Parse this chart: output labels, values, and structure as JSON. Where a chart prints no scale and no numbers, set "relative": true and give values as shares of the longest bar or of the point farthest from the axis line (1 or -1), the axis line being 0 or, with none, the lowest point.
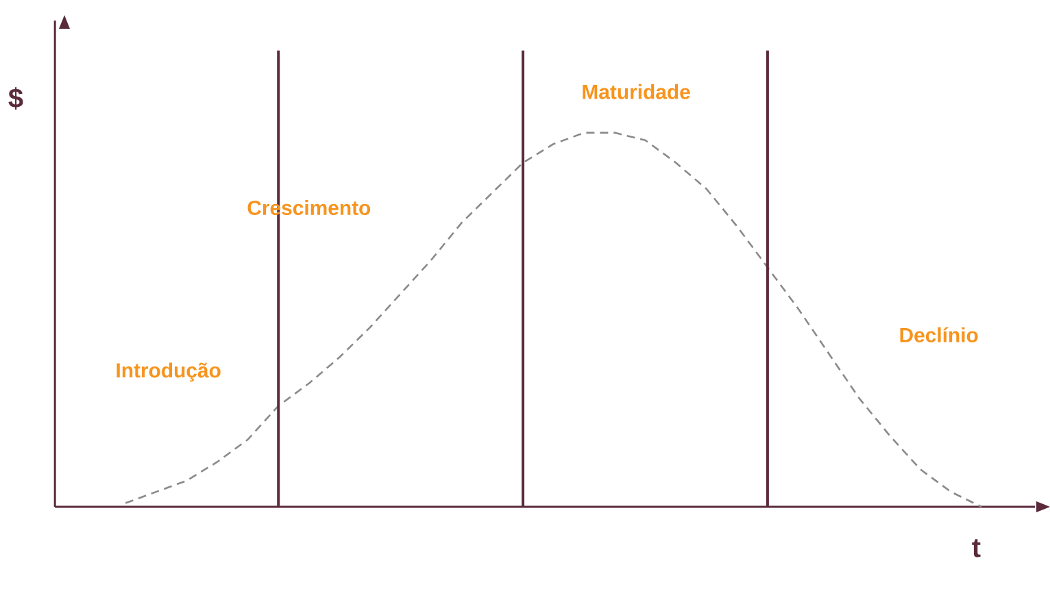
{
  "chart_data": {
    "type": "line",
    "relative": true,
    "xlabel": "t",
    "ylabel": "$",
    "grid": "x",
    "line_style": "dashed",
    "marker": "none",
    "categories": [
      null,
      null,
      null,
      null,
      null,
      null,
      null,
      null,
      null,
      null,
      null,
      null,
      null,
      null,
      null,
      null,
      null,
      null,
      null,
      null,
      null,
      null,
      null,
      null,
      null,
      null,
      null,
      null,
      null,
      null,
      null,
      null
    ],
    "series": [
      {
        "color": "#8a8a8a",
        "values": [
          null,
          null,
          0.01,
          0.04,
          0.07,
          0.12,
          0.18,
          0.27,
          0.33,
          0.4,
          0.48,
          0.57,
          0.66,
          0.76,
          0.84,
          0.92,
          0.97,
          1.0,
          1.0,
          0.98,
          0.92,
          0.85,
          0.75,
          0.64,
          0.53,
          0.41,
          0.29,
          0.19,
          0.1,
          0.04,
          0.0,
          null
        ]
      }
    ],
    "annotations": [
      "Introdução",
      "Crescimento",
      "Maturidade",
      "Declínio"
    ]
  }
}
